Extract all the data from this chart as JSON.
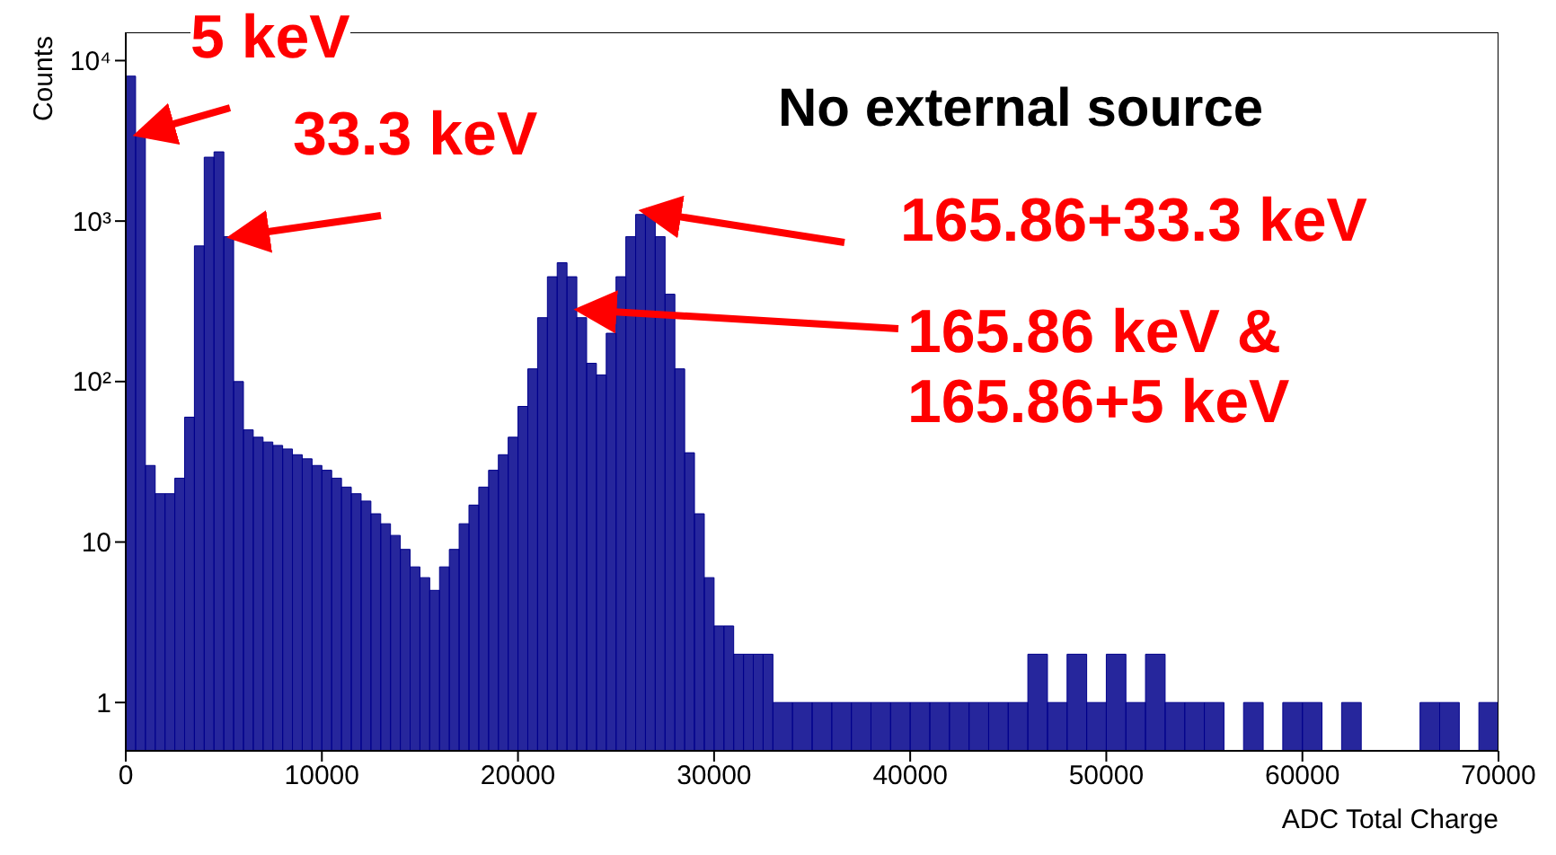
{
  "chart_data": {
    "type": "histogram",
    "xlabel": "ADC Total Charge",
    "ylabel": "Counts",
    "color": "#00008b",
    "bins": [
      0,
      500,
      1000,
      1500,
      2000,
      2500,
      3000,
      3500,
      4000,
      4500,
      5000,
      5500,
      6000,
      6500,
      7000,
      7500,
      8000,
      8500,
      9000,
      9500,
      10000,
      10500,
      11000,
      11500,
      12000,
      12500,
      13000,
      13500,
      14000,
      14500,
      15000,
      15500,
      16000,
      16500,
      17000,
      17500,
      18000,
      18500,
      19000,
      19500,
      20000,
      20500,
      21000,
      21500,
      22000,
      22500,
      23000,
      23500,
      24000,
      24500,
      25000,
      25500,
      26000,
      26500,
      27000,
      27500,
      28000,
      28500,
      29000,
      29500,
      30000,
      30500,
      31000,
      31500,
      32000,
      32500,
      33000,
      34000,
      35000,
      36000,
      37000,
      38000,
      39000,
      40000,
      41000,
      42000,
      43000,
      44000,
      45000,
      46000,
      47000,
      48000,
      49000,
      50000,
      51000,
      52000,
      53000,
      54000,
      55000,
      56000,
      57000,
      58000,
      59000,
      60000,
      61000,
      62000,
      63000,
      66000,
      67000,
      68000,
      69000,
      70000
    ],
    "values": [
      8000,
      3500,
      30,
      20,
      20,
      25,
      60,
      700,
      2500,
      2700,
      800,
      100,
      50,
      45,
      42,
      40,
      38,
      35,
      33,
      30,
      28,
      25,
      22,
      20,
      18,
      15,
      13,
      11,
      9,
      7,
      6,
      5,
      7,
      9,
      13,
      17,
      22,
      28,
      35,
      45,
      70,
      120,
      250,
      450,
      550,
      450,
      250,
      130,
      110,
      200,
      450,
      800,
      1100,
      1150,
      800,
      350,
      120,
      36,
      15,
      6,
      3,
      3,
      2,
      2,
      2,
      2,
      1,
      1,
      1,
      1,
      1,
      1,
      1,
      1,
      1,
      1,
      1,
      1,
      1,
      2,
      1,
      2,
      1,
      2,
      1,
      2,
      1,
      1,
      1,
      null,
      1,
      null,
      1,
      1,
      null,
      1,
      null,
      1,
      1,
      null,
      1
    ],
    "xlim": [
      0,
      70000
    ],
    "xticks": [
      0,
      10000,
      20000,
      30000,
      40000,
      50000,
      60000,
      70000
    ],
    "log": true,
    "ylim": [
      0.5,
      15000
    ],
    "yticks": [
      1,
      10,
      {
        "value": 100,
        "label": "10²"
      },
      {
        "value": 1000,
        "label": "10³"
      },
      {
        "value": 10000,
        "label": "10⁴"
      }
    ],
    "grid": false,
    "annotations": [
      {
        "text": "5 keV",
        "x": 700,
        "y": 3500
      },
      {
        "text": "33.3 keV",
        "x": 5500,
        "y": 800
      },
      "No external source",
      {
        "text": "165.86+33.3 keV",
        "x": 26500,
        "y": 1150
      },
      {
        "text": "165.86 keV &\n165.86+5 keV",
        "x": 23200,
        "y": 280
      }
    ]
  }
}
